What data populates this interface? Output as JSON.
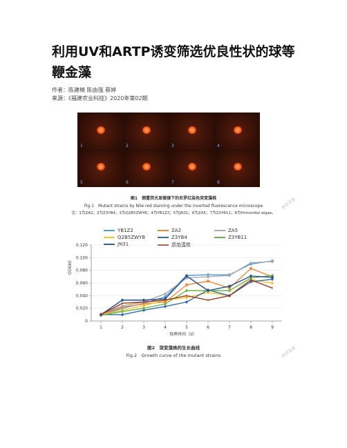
{
  "article": {
    "title": "利用UV和ARTP诱变筛选优良性状的球等鞭金藻",
    "author_line": "作者：陈建楠 陈由强 蔡婷",
    "source_line": "来源：《福建农业科技》2020年第02期"
  },
  "figure1": {
    "panel_numbers": [
      "1",
      "2",
      "3",
      "4",
      "5",
      "6",
      "7",
      "8"
    ],
    "caption_cn": "图1　倒置荧光显微镜下的尼罗红染色突变藻株",
    "caption_en": "Fig.1　Mutant strains by Nile red staining under the inverted fluorescence microscope",
    "note": "注：1为ZA2；2为Z3YB4；3为Q2B5ZWYB；4为YB1Z2；5为JN31；6为ZA5；7为Z3YB11；8为Primordial algae。"
  },
  "figure2": {
    "caption_cn": "图2　突变藻株的生长曲线",
    "caption_en": "Fig.2　Growth curve of the mutant strains"
  },
  "watermark": "水印文字",
  "chart_data": {
    "type": "line",
    "x": [
      1,
      2,
      3,
      4,
      5,
      6,
      7,
      8,
      9
    ],
    "ylabel": "OD680",
    "xlabel": "培养时间（d）",
    "ylim": [
      0,
      0.12
    ],
    "yticks": [
      "0",
      "0.020",
      "0.040",
      "0.060",
      "0.080",
      "0.100",
      "0.120"
    ],
    "legend_position": "top",
    "series": [
      {
        "name": "YB1Z2",
        "color": "#4f9ad8",
        "marker": "diamond",
        "values": [
          0.01,
          0.02,
          0.028,
          0.038,
          0.072,
          0.073,
          0.073,
          0.09,
          0.095
        ]
      },
      {
        "name": "ZA2",
        "color": "#f0883a",
        "marker": "square",
        "values": [
          0.01,
          0.022,
          0.027,
          0.03,
          0.057,
          0.063,
          0.052,
          0.083,
          0.07
        ]
      },
      {
        "name": "ZA5",
        "color": "#a8a8a8",
        "marker": "triangle",
        "values": [
          0.011,
          0.024,
          0.03,
          0.043,
          0.068,
          0.07,
          0.072,
          0.092,
          0.094
        ]
      },
      {
        "name": "Q2B5ZWYB",
        "color": "#f4c430",
        "marker": "cross",
        "values": [
          0.01,
          0.017,
          0.024,
          0.033,
          0.037,
          0.045,
          0.04,
          0.065,
          0.06
        ]
      },
      {
        "name": "Z3YB4",
        "color": "#2f6bb0",
        "marker": "star",
        "values": [
          0.01,
          0.01,
          0.017,
          0.023,
          0.03,
          0.049,
          0.04,
          0.062,
          0.066
        ]
      },
      {
        "name": "Z3YB11",
        "color": "#6cb34a",
        "marker": "circle",
        "values": [
          0.009,
          0.015,
          0.02,
          0.027,
          0.048,
          0.048,
          0.048,
          0.068,
          0.072
        ]
      },
      {
        "name": "JN31",
        "color": "#1f4f8a",
        "marker": "plus",
        "values": [
          0.01,
          0.033,
          0.033,
          0.035,
          0.071,
          0.048,
          0.055,
          0.071,
          0.069
        ]
      },
      {
        "name": "原始藻株",
        "color": "#9a3a1a",
        "marker": "none",
        "values": [
          0.01,
          0.028,
          0.03,
          0.033,
          0.04,
          0.033,
          0.04,
          0.065,
          0.052
        ]
      }
    ]
  }
}
